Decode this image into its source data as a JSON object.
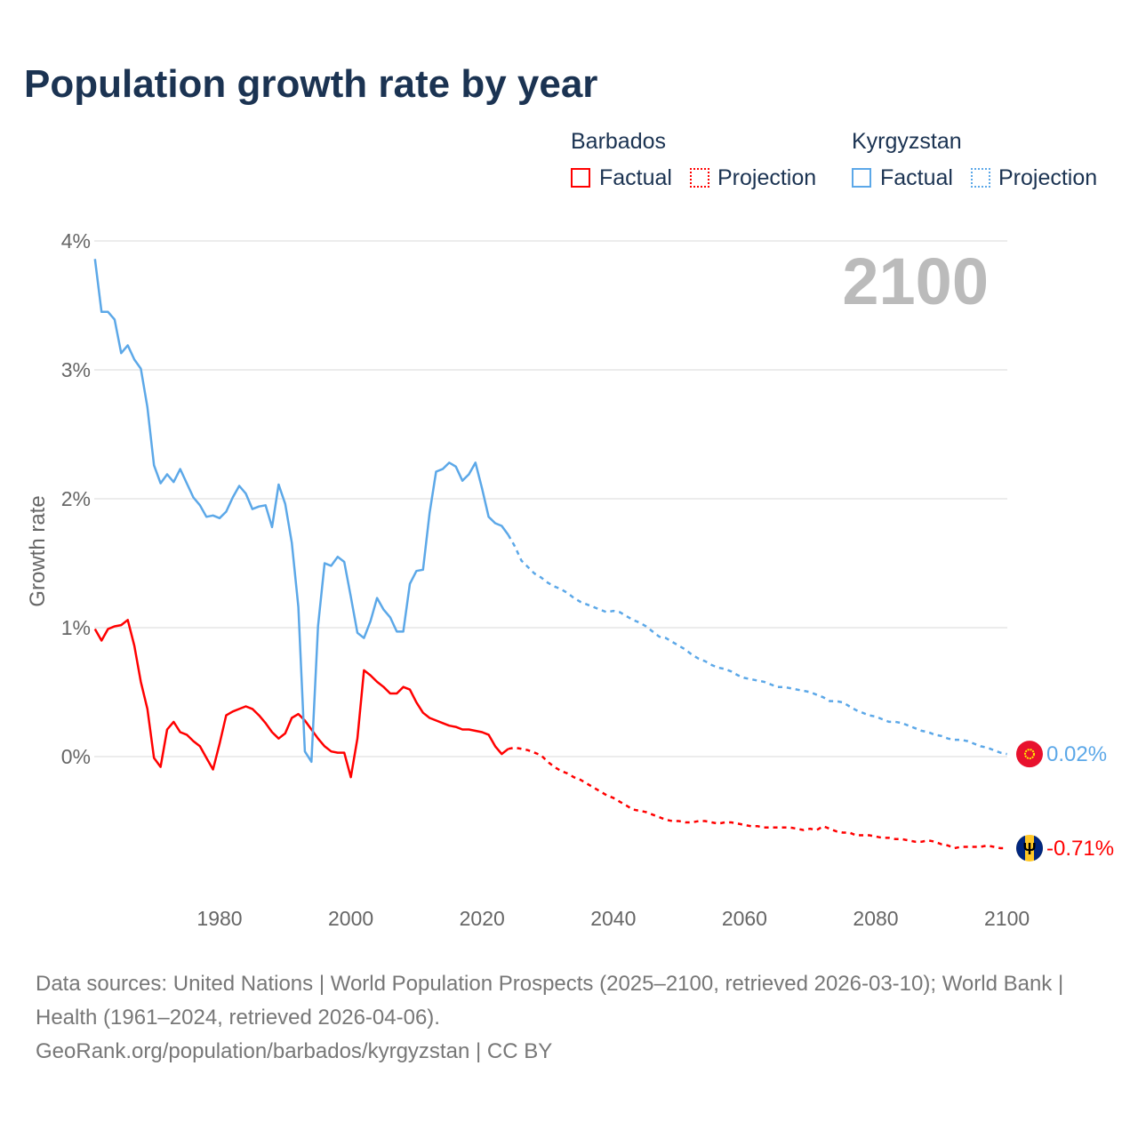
{
  "title": "Population growth rate by year",
  "legend": {
    "barbados": "Barbados",
    "kyrgyzstan": "Kyrgyzstan",
    "factual": "Factual",
    "projection": "Projection"
  },
  "footer": {
    "sources": "Data sources: United Nations | World Population Prospects (2025–2100, retrieved 2026-03-10); World Bank | Health (1961–2024, retrieved 2026-04-06).",
    "link": "GeoRank.org/population/barbados/kyrgyzstan | CC BY"
  },
  "chart_data": {
    "type": "line",
    "title": "Population growth rate by year",
    "ylabel": "Growth rate",
    "xlabel": "",
    "year_label": "2100",
    "ylim": [
      -1.0,
      4.0
    ],
    "xlim": [
      1961,
      2100
    ],
    "yticks": [
      {
        "v": 0,
        "label": "0%"
      },
      {
        "v": 1,
        "label": "1%"
      },
      {
        "v": 2,
        "label": "2%"
      },
      {
        "v": 3,
        "label": "3%"
      },
      {
        "v": 4,
        "label": "4%"
      }
    ],
    "xticks": [
      1980,
      2000,
      2020,
      2040,
      2060,
      2080,
      2100
    ],
    "grid": true,
    "legend_position": "top-right",
    "series": [
      {
        "name": "Barbados",
        "color": "#ff0000",
        "end_label": "-0.71%",
        "flag": "barbados-flag",
        "factual_start": 1961,
        "factual": [
          0.99,
          0.9,
          0.99,
          1.01,
          1.02,
          1.06,
          0.86,
          0.58,
          0.37,
          -0.01,
          -0.08,
          0.21,
          0.27,
          0.19,
          0.17,
          0.12,
          0.08,
          -0.01,
          -0.1,
          0.1,
          0.32,
          0.35,
          0.37,
          0.39,
          0.37,
          0.32,
          0.26,
          0.19,
          0.14,
          0.18,
          0.3,
          0.33,
          0.28,
          0.21,
          0.14,
          0.08,
          0.04,
          0.03,
          0.03,
          -0.16,
          0.14,
          0.67,
          0.63,
          0.58,
          0.54,
          0.49,
          0.49,
          0.54,
          0.52,
          0.42,
          0.34,
          0.3,
          0.28,
          0.26,
          0.24,
          0.23,
          0.21,
          0.21,
          0.2,
          0.19,
          0.17,
          0.08,
          0.02,
          0.06
        ],
        "projection_start": 2024,
        "projection": [
          0.06,
          0.07,
          0.06,
          0.05,
          0.03,
          0.01,
          -0.04,
          -0.08,
          -0.11,
          -0.13,
          -0.16,
          -0.18,
          -0.21,
          -0.24,
          -0.27,
          -0.3,
          -0.32,
          -0.35,
          -0.38,
          -0.41,
          -0.42,
          -0.43,
          -0.45,
          -0.47,
          -0.49,
          -0.5,
          -0.5,
          -0.51,
          -0.51,
          -0.5,
          -0.5,
          -0.51,
          -0.52,
          -0.51,
          -0.51,
          -0.52,
          -0.53,
          -0.54,
          -0.54,
          -0.55,
          -0.55,
          -0.55,
          -0.55,
          -0.55,
          -0.56,
          -0.57,
          -0.56,
          -0.57,
          -0.54,
          -0.56,
          -0.58,
          -0.59,
          -0.59,
          -0.61,
          -0.61,
          -0.61,
          -0.62,
          -0.63,
          -0.63,
          -0.64,
          -0.64,
          -0.65,
          -0.66,
          -0.66,
          -0.65,
          -0.66,
          -0.68,
          -0.69,
          -0.71,
          -0.7,
          -0.7,
          -0.7,
          -0.7,
          -0.69,
          -0.7,
          -0.71,
          -0.71
        ]
      },
      {
        "name": "Kyrgyzstan",
        "color": "#5ca8e8",
        "end_label": "0.02%",
        "flag": "kyrgyzstan-flag",
        "factual_start": 1961,
        "factual": [
          3.86,
          3.45,
          3.45,
          3.39,
          3.13,
          3.19,
          3.08,
          3.01,
          2.71,
          2.26,
          2.12,
          2.19,
          2.13,
          2.23,
          2.12,
          2.01,
          1.95,
          1.86,
          1.87,
          1.85,
          1.9,
          2.01,
          2.1,
          2.04,
          1.92,
          1.94,
          1.95,
          1.78,
          2.11,
          1.96,
          1.66,
          1.16,
          0.04,
          -0.04,
          1.01,
          1.5,
          1.48,
          1.55,
          1.51,
          1.24,
          0.96,
          0.92,
          1.05,
          1.23,
          1.14,
          1.08,
          0.97,
          0.97,
          1.34,
          1.44,
          1.45,
          1.89,
          2.21,
          2.23,
          2.28,
          2.25,
          2.14,
          2.19,
          2.28,
          2.08,
          1.86,
          1.81,
          1.79,
          1.72
        ],
        "projection_start": 2024,
        "projection": [
          1.72,
          1.63,
          1.52,
          1.47,
          1.42,
          1.39,
          1.35,
          1.32,
          1.3,
          1.27,
          1.23,
          1.2,
          1.18,
          1.16,
          1.14,
          1.12,
          1.13,
          1.12,
          1.09,
          1.06,
          1.04,
          1.01,
          0.97,
          0.93,
          0.92,
          0.89,
          0.86,
          0.83,
          0.79,
          0.76,
          0.74,
          0.71,
          0.69,
          0.68,
          0.66,
          0.63,
          0.61,
          0.6,
          0.59,
          0.58,
          0.56,
          0.54,
          0.54,
          0.53,
          0.52,
          0.51,
          0.5,
          0.48,
          0.46,
          0.43,
          0.43,
          0.42,
          0.39,
          0.36,
          0.34,
          0.32,
          0.31,
          0.29,
          0.27,
          0.27,
          0.26,
          0.24,
          0.22,
          0.2,
          0.19,
          0.17,
          0.16,
          0.14,
          0.13,
          0.13,
          0.12,
          0.1,
          0.08,
          0.07,
          0.05,
          0.03,
          0.02
        ]
      }
    ]
  }
}
